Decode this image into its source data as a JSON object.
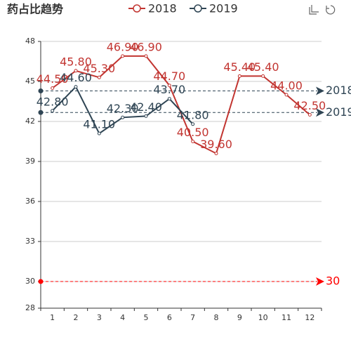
{
  "chart_data": {
    "type": "line",
    "title": "药占比趋势",
    "categories": [
      "1",
      "2",
      "3",
      "4",
      "5",
      "6",
      "7",
      "8",
      "9",
      "10",
      "11",
      "12"
    ],
    "series": [
      {
        "name": "2018",
        "color": "#c23531",
        "values": [
          44.5,
          45.8,
          45.3,
          46.9,
          46.9,
          44.7,
          40.5,
          39.6,
          45.4,
          45.4,
          44.0,
          42.5
        ],
        "value_labels": [
          "44.50",
          "45.80",
          "45.30",
          "46.90",
          "46.90",
          "44.70",
          "40.50",
          "39.60",
          "45.40",
          "45.40",
          "44.00",
          "42.50"
        ]
      },
      {
        "name": "2019",
        "color": "#2f4554",
        "values": [
          42.8,
          44.6,
          41.1,
          42.3,
          42.4,
          43.7,
          41.8,
          null,
          null,
          null,
          null,
          null
        ],
        "value_labels": [
          "42.80",
          "44.60",
          "41.10",
          "42.30",
          "42.40",
          "43.70",
          "41.80",
          null,
          null,
          null,
          null,
          null
        ]
      }
    ],
    "mark_lines": [
      {
        "label": "2018",
        "value": 44.29,
        "color": "#2f4554"
      },
      {
        "label": "2019",
        "value": 42.67,
        "color": "#2f4554"
      }
    ],
    "threshold": {
      "value": 30,
      "color": "#ff0000"
    },
    "ylim": [
      28,
      48
    ],
    "yticks": [
      28,
      30,
      33,
      36,
      39,
      42,
      45,
      48
    ],
    "grid": true
  }
}
